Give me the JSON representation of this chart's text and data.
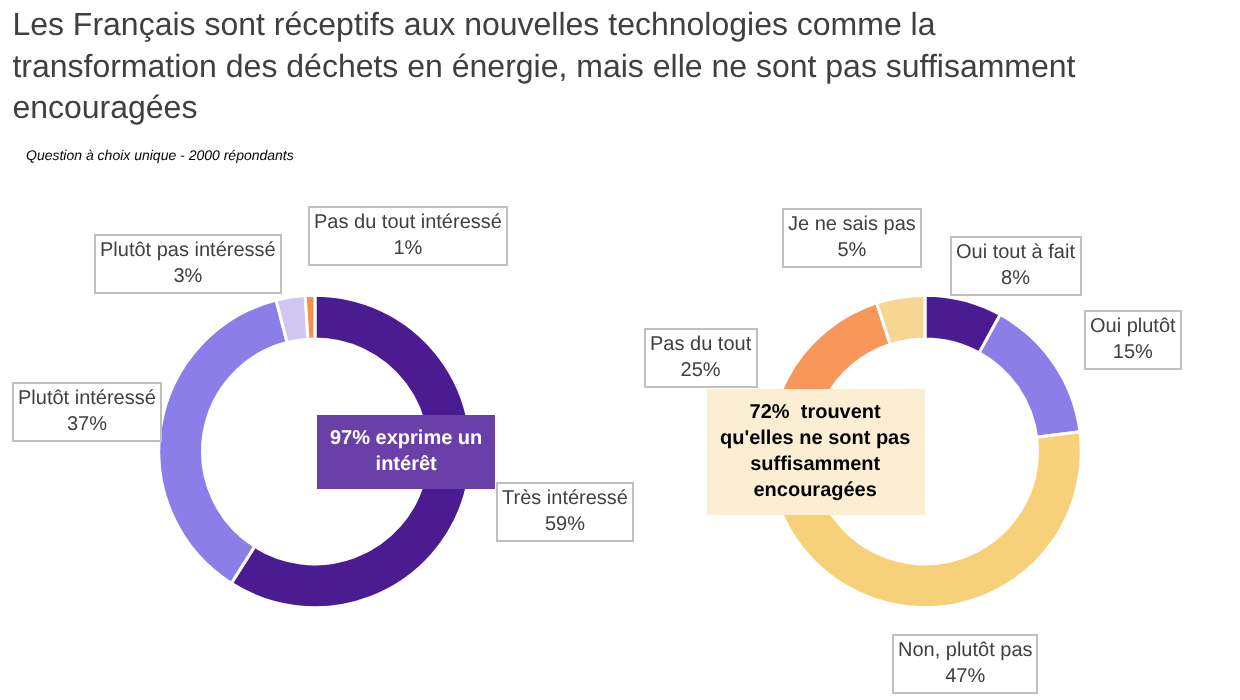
{
  "chart_data": [
    {
      "type": "donut",
      "title": "Les Français sont réceptifs aux nouvelles technologies comme la\ntransformation des déchets en énergie, mais elle ne sont pas suffisamment\nencouragées",
      "subtitle": "Question à choix unique - 2000 répondants",
      "categories": [
        "Très intéressé",
        "Plutôt intéressé",
        "Plutôt pas intéressé",
        "Pas du tout intéressé"
      ],
      "values": [
        59,
        37,
        3,
        1
      ],
      "value_labels": [
        "59%",
        "37%",
        "3%",
        "1%"
      ],
      "colors": [
        "#4b1c91",
        "#8b7ee8",
        "#cfc6f2",
        "#f4914d"
      ],
      "annotations": [
        "97% exprime un\nintérêt"
      ]
    },
    {
      "type": "donut",
      "categories": [
        "Oui tout à fait",
        "Oui plutôt",
        "Non, plutôt pas",
        "Pas du tout",
        "Je ne sais pas"
      ],
      "values": [
        8,
        15,
        47,
        25,
        5
      ],
      "value_labels": [
        "8%",
        "15%",
        "47%",
        "25%",
        "5%"
      ],
      "colors": [
        "#4b1c91",
        "#8b7ee8",
        "#f7d17a",
        "#f7975a",
        "#f7d592"
      ],
      "annotations": [
        "72%  trouvent\nqu'elles ne sont pas\nsuffisamment\nencouragées"
      ]
    }
  ]
}
